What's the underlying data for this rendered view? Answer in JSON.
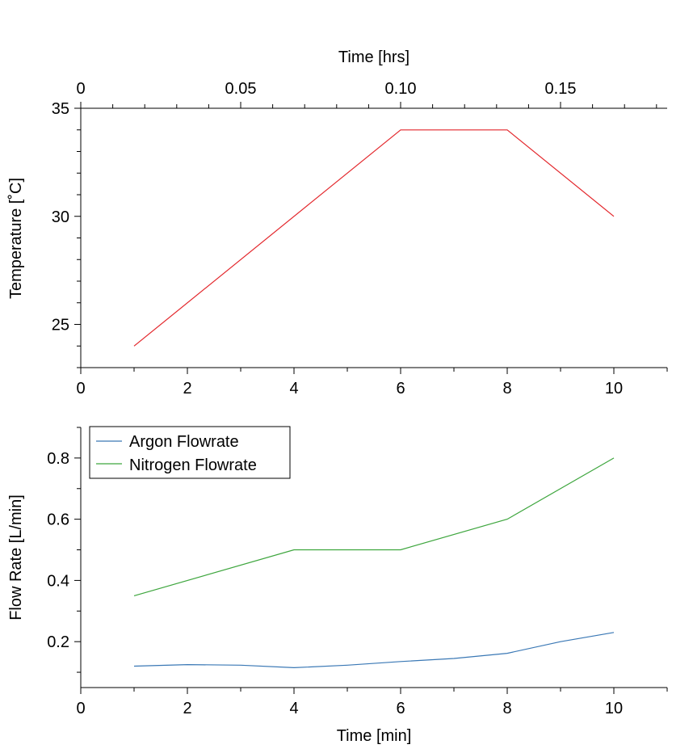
{
  "chart_data": [
    {
      "type": "line",
      "name": "temperature-panel",
      "top_xlabel": "Time [hrs]",
      "top_xticks": [
        0,
        0.05,
        0.1,
        0.15
      ],
      "top_xtick_labels": [
        "0",
        "0.05",
        "0.10",
        "0.15"
      ],
      "top_xlim": [
        0,
        0.18333
      ],
      "xlabel": "",
      "xlim": [
        0,
        11
      ],
      "xticks": [
        0,
        2,
        4,
        6,
        8,
        10
      ],
      "xtick_labels": [
        "0",
        "2",
        "4",
        "6",
        "8",
        "10"
      ],
      "ylabel": "Temperature [˚C]",
      "ylim": [
        23,
        35
      ],
      "yticks": [
        25,
        30,
        35
      ],
      "ytick_labels": [
        "25",
        "30",
        "35"
      ],
      "grid": false,
      "series": [
        {
          "color": "#e3262b",
          "x": [
            1,
            6,
            8,
            10
          ],
          "y": [
            24,
            34,
            34,
            30
          ]
        }
      ]
    },
    {
      "type": "line",
      "name": "flow-panel",
      "xlabel": "Time [min]",
      "xlim": [
        0,
        11
      ],
      "xticks": [
        0,
        2,
        4,
        6,
        8,
        10
      ],
      "xtick_labels": [
        "0",
        "2",
        "4",
        "6",
        "8",
        "10"
      ],
      "ylabel": "Flow Rate [L/min]",
      "ylim": [
        0.05,
        0.9
      ],
      "yticks": [
        0.2,
        0.4,
        0.6,
        0.8
      ],
      "ytick_labels": [
        "0.2",
        "0.4",
        "0.6",
        "0.8"
      ],
      "grid": false,
      "legend_position": "top-left",
      "series": [
        {
          "name": "Argon Flowrate",
          "color": "#3a78b5",
          "x": [
            1,
            2,
            3,
            4,
            5,
            6,
            7,
            8,
            9,
            10
          ],
          "y": [
            0.12,
            0.125,
            0.123,
            0.115,
            0.123,
            0.135,
            0.145,
            0.162,
            0.2,
            0.23
          ]
        },
        {
          "name": "Nitrogen Flowrate",
          "color": "#3ea63e",
          "x": [
            1,
            4,
            6,
            8,
            10
          ],
          "y": [
            0.35,
            0.5,
            0.5,
            0.6,
            0.8
          ]
        }
      ]
    }
  ]
}
